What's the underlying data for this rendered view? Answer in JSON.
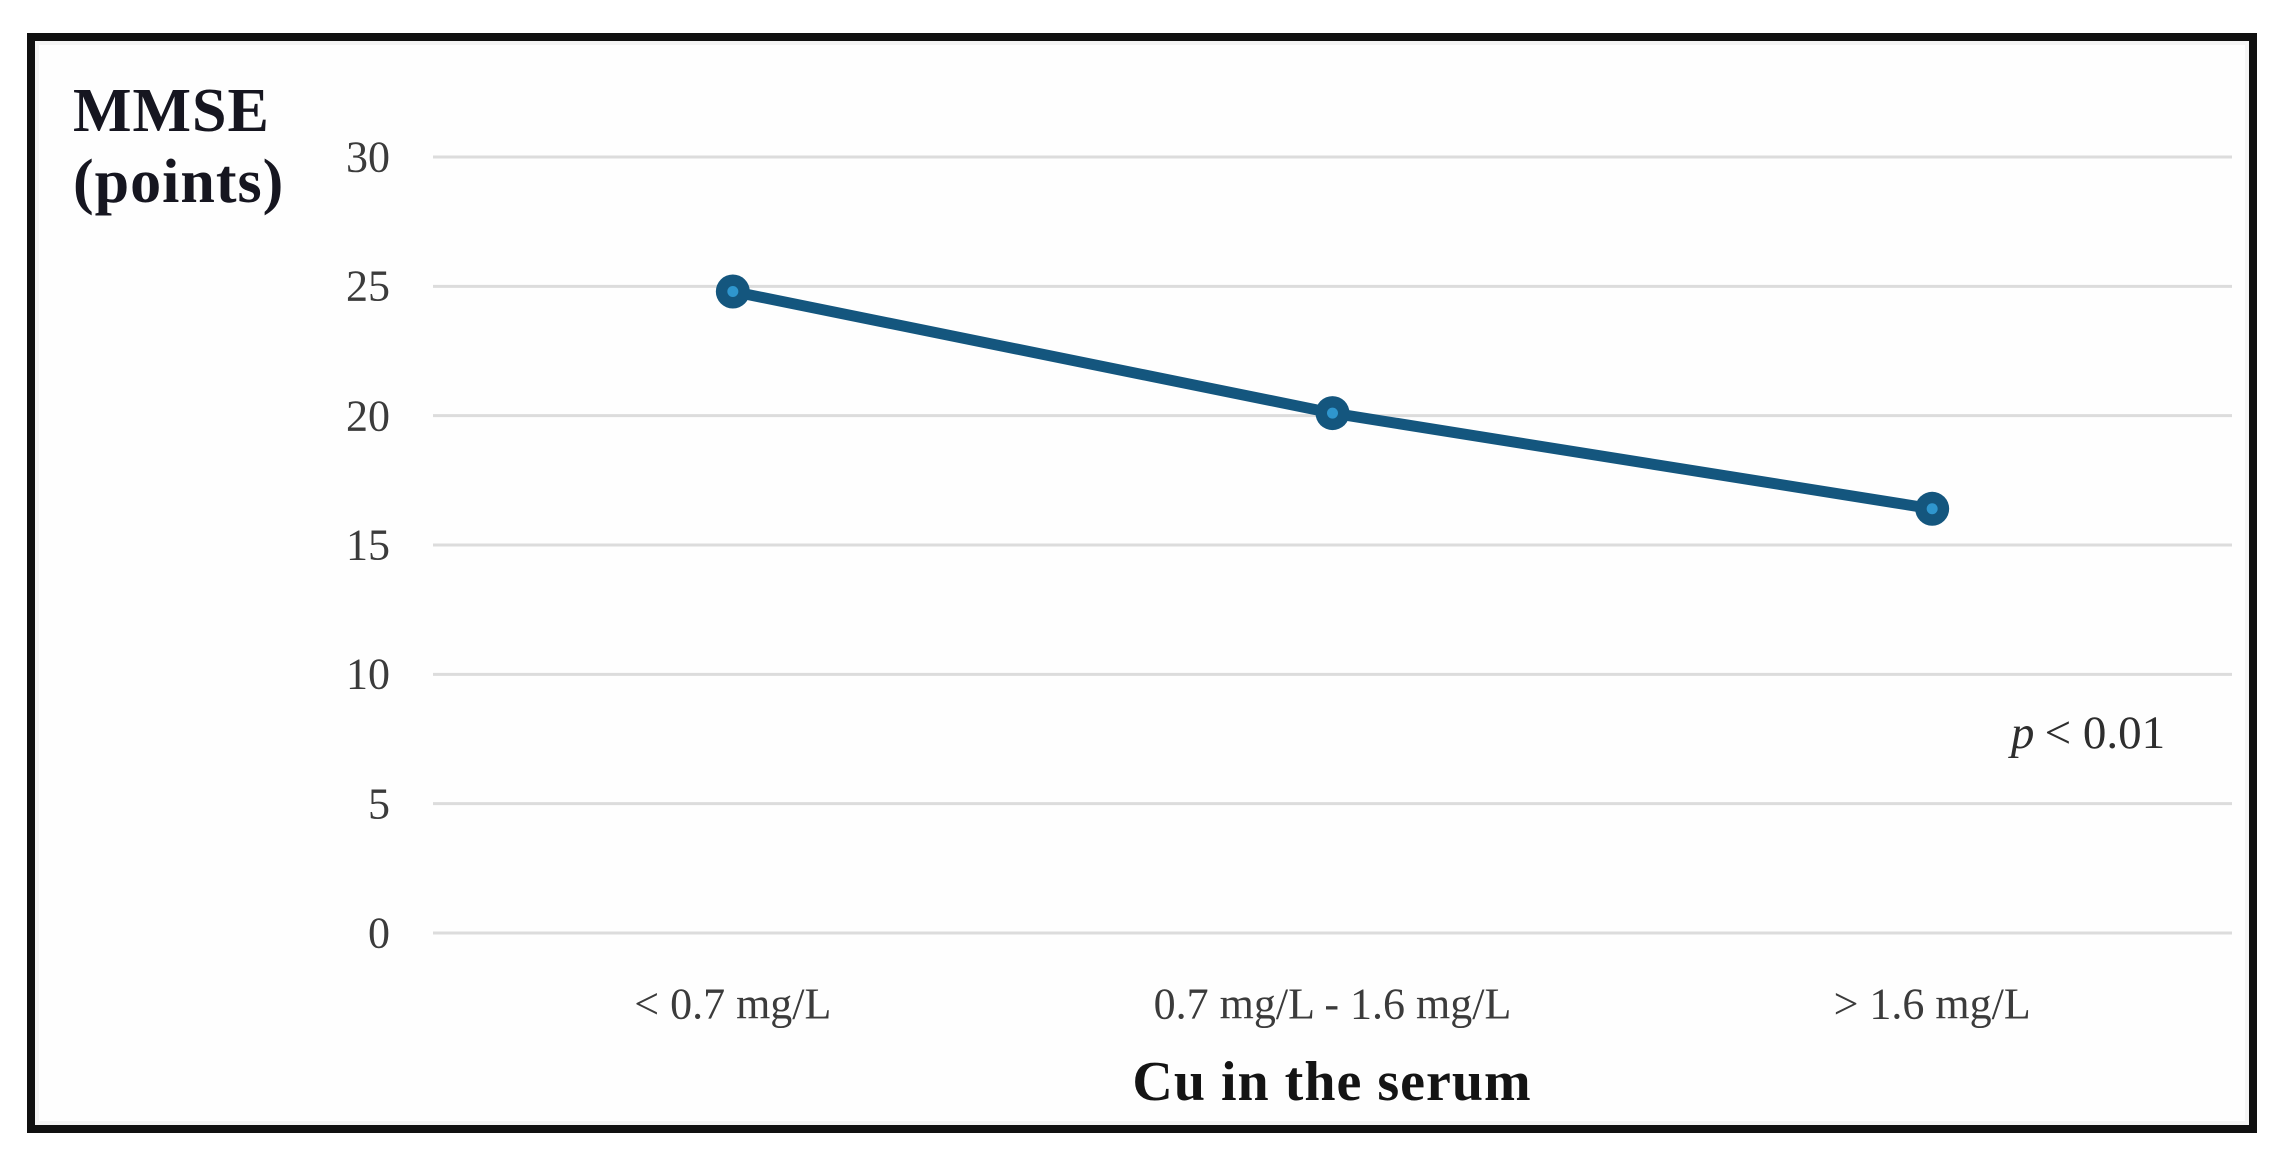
{
  "figure": {
    "y_axis_title_line1": "MMSE",
    "y_axis_title_line2": "(points)",
    "x_axis_title": "Cu in the serum",
    "annotation": {
      "p_symbol": "p",
      "p_rest": "< 0.01"
    }
  },
  "chart_data": {
    "type": "line",
    "title": "",
    "xlabel": "Cu in the serum",
    "ylabel": "MMSE (points)",
    "categories": [
      "< 0.7 mg/L",
      "0.7 mg/L - 1.6 mg/L",
      "> 1.6 mg/L"
    ],
    "series": [
      {
        "name": "MMSE",
        "values": [
          24.8,
          20.1,
          16.4
        ]
      }
    ],
    "ylim": [
      0,
      30
    ],
    "yticks": [
      0,
      5,
      10,
      15,
      20,
      25,
      30
    ],
    "grid": true,
    "legend": "none",
    "annotation": "p < 0.01",
    "colors": {
      "line": "#14567e",
      "marker_fill": "#14567e",
      "marker_center": "#2f96ce",
      "gridline": "#dcdcdc",
      "tick_text": "#3b3b3b",
      "title_text": "#141414",
      "frame_border": "#101010",
      "background": "#ffffff"
    }
  }
}
